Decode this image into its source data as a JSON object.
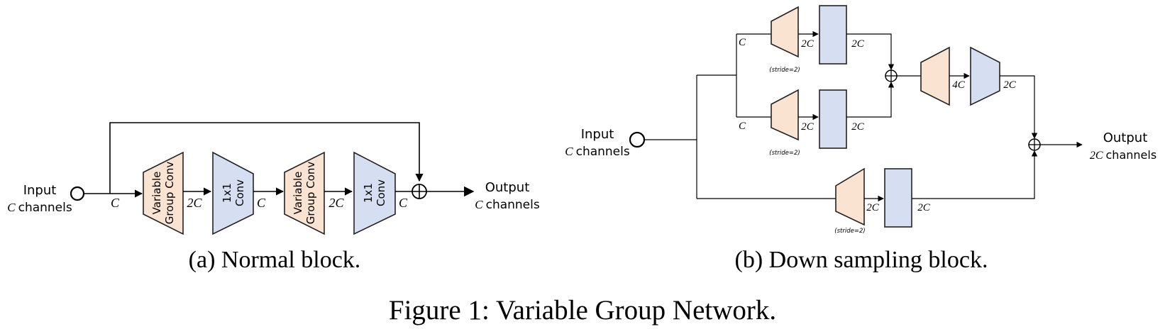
{
  "colors": {
    "peach": "#fbe3d2",
    "blue": "#d6dff2",
    "line": "#000000"
  },
  "panel_a": {
    "input_label": "Input",
    "input_channels_var": "C",
    "input_channels_word": "channels",
    "output_label": "Output",
    "output_channels_var": "C",
    "output_channels_word": "channels",
    "vgc_line1": "Variable",
    "vgc_line2": "Group Conv",
    "conv_line1": "1x1",
    "conv_line2": "Conv",
    "edge_c": "C",
    "edge_2c": "2C",
    "caption": "(a) Normal block."
  },
  "panel_b": {
    "input_label": "Input",
    "input_channels_var": "C",
    "input_channels_word": "channels",
    "output_label": "Output",
    "output_channels_var": "2C",
    "output_channels_word": "channels",
    "edge_c": "C",
    "edge_2c": "2C",
    "edge_4c": "4C",
    "stride_label": "(stride=2)",
    "caption": "(b) Down sampling block."
  },
  "figure_caption": "Figure 1: Variable Group Network."
}
